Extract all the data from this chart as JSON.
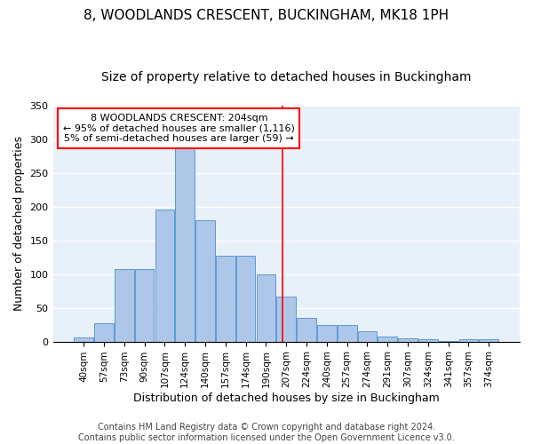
{
  "title": "8, WOODLANDS CRESCENT, BUCKINGHAM, MK18 1PH",
  "subtitle": "Size of property relative to detached houses in Buckingham",
  "xlabel": "Distribution of detached houses by size in Buckingham",
  "ylabel": "Number of detached properties",
  "categories": [
    "40sqm",
    "57sqm",
    "73sqm",
    "90sqm",
    "107sqm",
    "124sqm",
    "140sqm",
    "157sqm",
    "174sqm",
    "190sqm",
    "207sqm",
    "224sqm",
    "240sqm",
    "257sqm",
    "274sqm",
    "291sqm",
    "307sqm",
    "324sqm",
    "341sqm",
    "357sqm",
    "374sqm"
  ],
  "values": [
    6,
    27,
    107,
    107,
    196,
    290,
    180,
    127,
    127,
    99,
    66,
    35,
    25,
    25,
    15,
    8,
    5,
    4,
    1,
    3,
    3
  ],
  "bar_color": "#aec6e8",
  "bar_edge_color": "#5b9bd5",
  "vline_color": "red",
  "annotation_line1": "8 WOODLANDS CRESCENT: 204sqm",
  "annotation_line2": "← 95% of detached houses are smaller (1,116)",
  "annotation_line3": "5% of semi-detached houses are larger (59) →",
  "annotation_box_color": "white",
  "annotation_box_edge_color": "red",
  "ylim": [
    0,
    350
  ],
  "yticks": [
    0,
    50,
    100,
    150,
    200,
    250,
    300,
    350
  ],
  "background_color": "#e8f0fa",
  "grid_color": "#ffffff",
  "footer1": "Contains HM Land Registry data © Crown copyright and database right 2024.",
  "footer2": "Contains public sector information licensed under the Open Government Licence v3.0.",
  "title_fontsize": 11,
  "subtitle_fontsize": 10,
  "xlabel_fontsize": 9,
  "ylabel_fontsize": 9,
  "tick_fontsize": 8,
  "annot_fontsize": 8,
  "footer_fontsize": 7
}
